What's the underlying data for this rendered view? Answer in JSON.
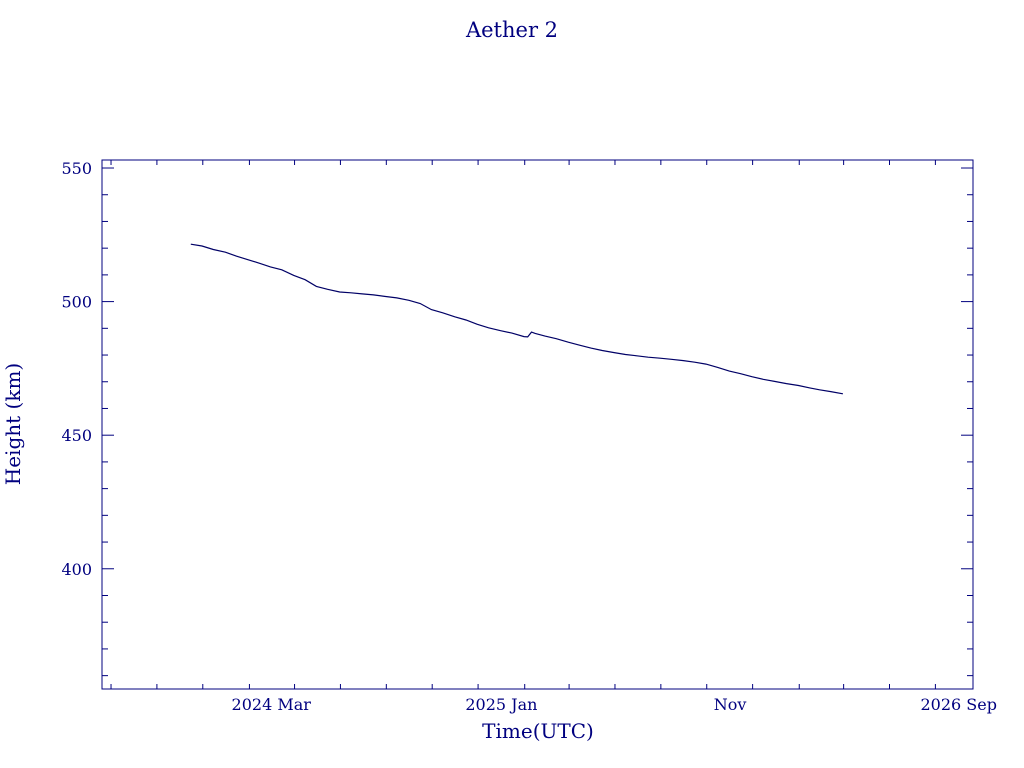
{
  "colors": {
    "axis": "#00007f",
    "line": "#000066",
    "text": "#00007f",
    "background": "#ffffff"
  },
  "chart_data": {
    "type": "line",
    "title": "Aether 2",
    "xlabel": "Time(UTC)",
    "ylabel": "Height (km)",
    "x_type": "date",
    "xlim": [
      "2023-07-20",
      "2026-09-20"
    ],
    "ylim": [
      355,
      553
    ],
    "grid": false,
    "legend": "none",
    "x_ticks": [
      {
        "date": "2024-03-01",
        "label": "2024 Mar"
      },
      {
        "date": "2025-01-01",
        "label": "2025 Jan"
      },
      {
        "date": "2025-11-01",
        "label": "Nov"
      },
      {
        "date": "2026-09-01",
        "label": "2026 Sep"
      }
    ],
    "y_ticks": [
      400,
      450,
      500,
      550
    ],
    "series": [
      {
        "x": [
          "2023-11-15",
          "2023-11-30",
          "2023-12-15",
          "2023-12-31",
          "2024-01-15",
          "2024-01-31",
          "2024-02-15",
          "2024-02-29",
          "2024-03-15",
          "2024-03-31",
          "2024-04-15",
          "2024-04-30",
          "2024-05-15",
          "2024-05-31",
          "2024-06-15",
          "2024-06-30",
          "2024-07-15",
          "2024-07-31",
          "2024-08-15",
          "2024-08-31",
          "2024-09-15",
          "2024-09-30",
          "2024-10-15",
          "2024-10-31",
          "2024-11-15",
          "2024-11-30",
          "2024-12-15",
          "2024-12-31",
          "2025-01-15",
          "2025-01-31",
          "2025-02-05",
          "2025-02-10",
          "2025-02-15",
          "2025-02-28",
          "2025-03-15",
          "2025-03-31",
          "2025-04-15",
          "2025-04-30",
          "2025-05-15",
          "2025-05-31",
          "2025-06-15",
          "2025-06-30",
          "2025-07-15",
          "2025-07-31",
          "2025-08-15",
          "2025-08-31",
          "2025-09-15",
          "2025-09-30",
          "2025-10-15",
          "2025-10-31",
          "2025-11-15",
          "2025-11-30",
          "2025-12-15",
          "2025-12-31",
          "2026-01-15",
          "2026-01-31",
          "2026-02-15",
          "2026-02-28",
          "2026-03-15",
          "2026-03-31"
        ],
        "y": [
          521.5,
          520.8,
          519.5,
          518.5,
          517.0,
          515.6,
          514.3,
          513.0,
          511.9,
          509.8,
          508.2,
          505.7,
          504.6,
          503.6,
          503.3,
          502.9,
          502.5,
          501.9,
          501.4,
          500.5,
          499.3,
          497.0,
          495.8,
          494.3,
          493.1,
          491.5,
          490.2,
          489.1,
          488.2,
          486.9,
          486.8,
          488.6,
          488.1,
          487.1,
          486.1,
          484.8,
          483.7,
          482.6,
          481.7,
          480.9,
          480.2,
          479.7,
          479.2,
          478.8,
          478.4,
          477.9,
          477.3,
          476.6,
          475.4,
          474.0,
          473.0,
          471.9,
          470.9,
          470.1,
          469.3,
          468.6,
          467.7,
          467.0,
          466.3,
          465.5
        ]
      }
    ]
  }
}
